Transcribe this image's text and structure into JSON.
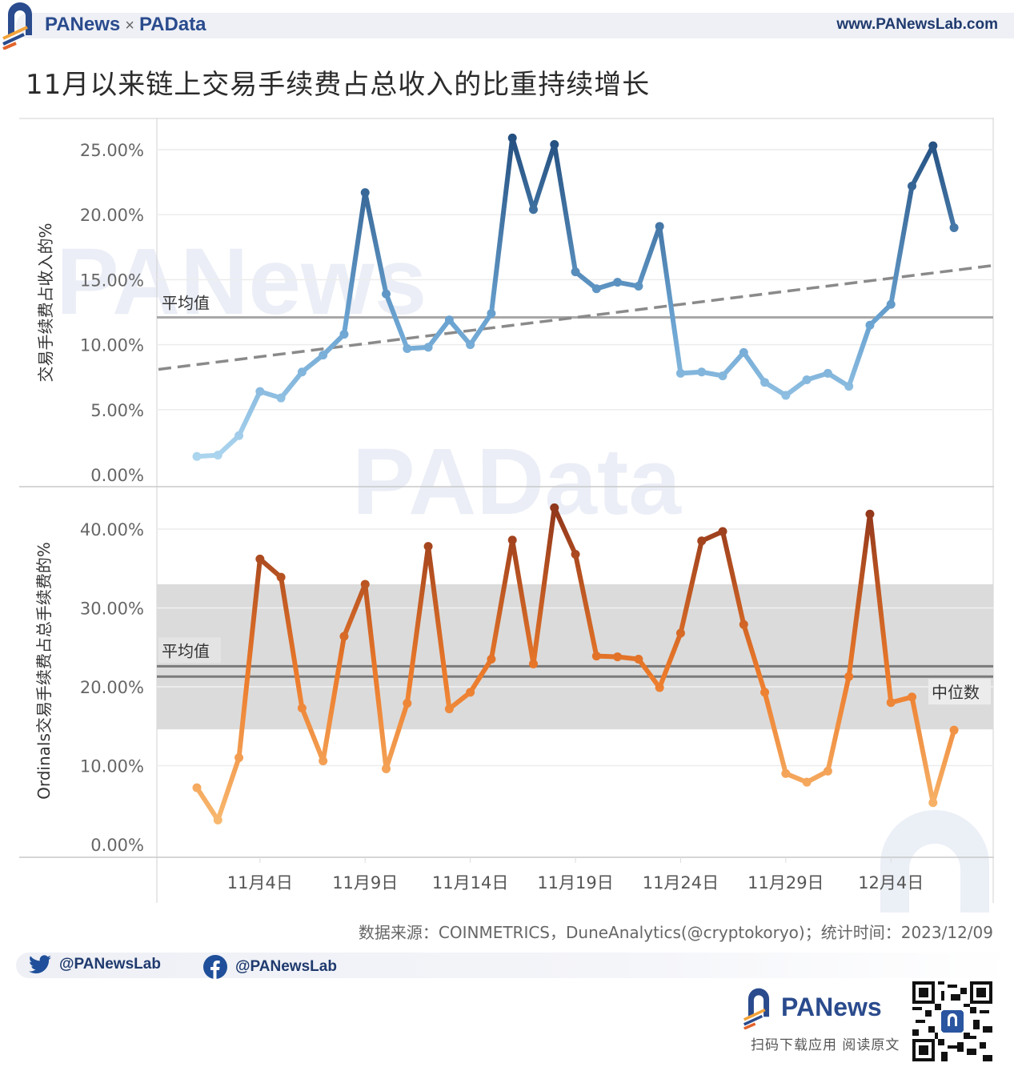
{
  "header": {
    "brand_left": "PANews",
    "brand_sep": "×",
    "brand_right": "PAData",
    "site_url": "www.PANewsLab.com"
  },
  "title": "11月以来链上交易手续费占总收入的比重持续增长",
  "footer": {
    "source": "数据来源：COINMETRICS，DuneAnalytics(@cryptokoryo)；统计时间：2023/12/09",
    "twitter_handle": "@PANewsLab",
    "facebook_handle": "@PANewsLab",
    "app_brand": "PANews",
    "app_caption": "扫码下载应用  阅读原文"
  },
  "watermarks": [
    "PANews",
    "PAData"
  ],
  "colors": {
    "blue_dark": "#2b5a8a",
    "blue_light": "#a9d1ec",
    "orange_dark": "#9c3a1c",
    "orange_light": "#f7b66a",
    "band": "#d9d9d9",
    "ref_line": "#8c8c8c",
    "brand_blue": "#2a4b8d"
  },
  "chart_data": [
    {
      "type": "line",
      "title": "11月以来链上交易手续费占总收入的比重持续增长",
      "ylabel": "交易手续费占收入的%",
      "xlabel": "",
      "ylim": [
        0,
        27
      ],
      "yticks": [
        "0.00%",
        "5.00%",
        "10.00%",
        "15.00%",
        "20.00%",
        "25.00%"
      ],
      "x_tick_labels": [
        "11月4日",
        "11月9日",
        "11月14日",
        "11月19日",
        "11月24日",
        "11月29日",
        "12月4日"
      ],
      "x": [
        "11/1",
        "11/2",
        "11/3",
        "11/4",
        "11/5",
        "11/6",
        "11/7",
        "11/8",
        "11/9",
        "11/10",
        "11/11",
        "11/12",
        "11/13",
        "11/14",
        "11/15",
        "11/16",
        "11/17",
        "11/18",
        "11/19",
        "11/20",
        "11/21",
        "11/22",
        "11/23",
        "11/24",
        "11/25",
        "11/26",
        "11/27",
        "11/28",
        "11/29",
        "11/30",
        "12/1",
        "12/2",
        "12/3",
        "12/4",
        "12/5",
        "12/6",
        "12/7"
      ],
      "series": [
        {
          "name": "交易手续费占收入的%",
          "values": [
            1.4,
            1.5,
            3.0,
            6.4,
            5.9,
            7.9,
            9.2,
            10.8,
            21.7,
            13.9,
            9.7,
            9.8,
            11.9,
            10.0,
            12.4,
            25.9,
            20.4,
            25.4,
            15.6,
            14.3,
            14.8,
            14.5,
            19.1,
            7.8,
            7.9,
            7.6,
            9.4,
            7.1,
            6.1,
            7.3,
            7.8,
            6.8,
            11.5,
            13.1,
            22.2,
            25.3,
            19.0
          ]
        }
      ],
      "reference_lines": [
        {
          "label": "平均值",
          "value": 12.1
        }
      ],
      "trend_line": {
        "style": "dashed",
        "start": 8.1,
        "end": 16.1
      },
      "grid": true
    },
    {
      "type": "line",
      "ylabel": "Ordinals交易手续费占总手续费的%",
      "xlabel": "",
      "ylim": [
        0,
        44
      ],
      "yticks": [
        "0.00%",
        "10.00%",
        "20.00%",
        "30.00%",
        "40.00%"
      ],
      "x_tick_labels": [
        "11月4日",
        "11月9日",
        "11月14日",
        "11月19日",
        "11月24日",
        "11月29日",
        "12月4日"
      ],
      "x": [
        "11/1",
        "11/2",
        "11/3",
        "11/4",
        "11/5",
        "11/6",
        "11/7",
        "11/8",
        "11/9",
        "11/10",
        "11/11",
        "11/12",
        "11/13",
        "11/14",
        "11/15",
        "11/16",
        "11/17",
        "11/18",
        "11/19",
        "11/20",
        "11/21",
        "11/22",
        "11/23",
        "11/24",
        "11/25",
        "11/26",
        "11/27",
        "11/28",
        "11/29",
        "11/30",
        "12/1",
        "12/2",
        "12/3",
        "12/4",
        "12/5",
        "12/6",
        "12/7"
      ],
      "series": [
        {
          "name": "Ordinals交易手续费占总手续费的%",
          "values": [
            7.2,
            3.1,
            11.0,
            36.2,
            33.9,
            17.3,
            10.6,
            26.4,
            33.0,
            9.6,
            17.9,
            37.8,
            17.2,
            19.3,
            23.5,
            38.6,
            22.9,
            42.7,
            36.8,
            23.9,
            23.8,
            23.5,
            19.9,
            26.8,
            38.5,
            39.7,
            27.9,
            19.3,
            9.0,
            7.9,
            9.3,
            21.3,
            41.9,
            18.0,
            18.7,
            5.3,
            14.5
          ]
        }
      ],
      "reference_lines": [
        {
          "label": "平均值",
          "value": 22.6
        },
        {
          "label": "中位数",
          "value": 21.3
        }
      ],
      "reference_band": {
        "from": 14.6,
        "to": 33.0
      },
      "grid": true
    }
  ]
}
